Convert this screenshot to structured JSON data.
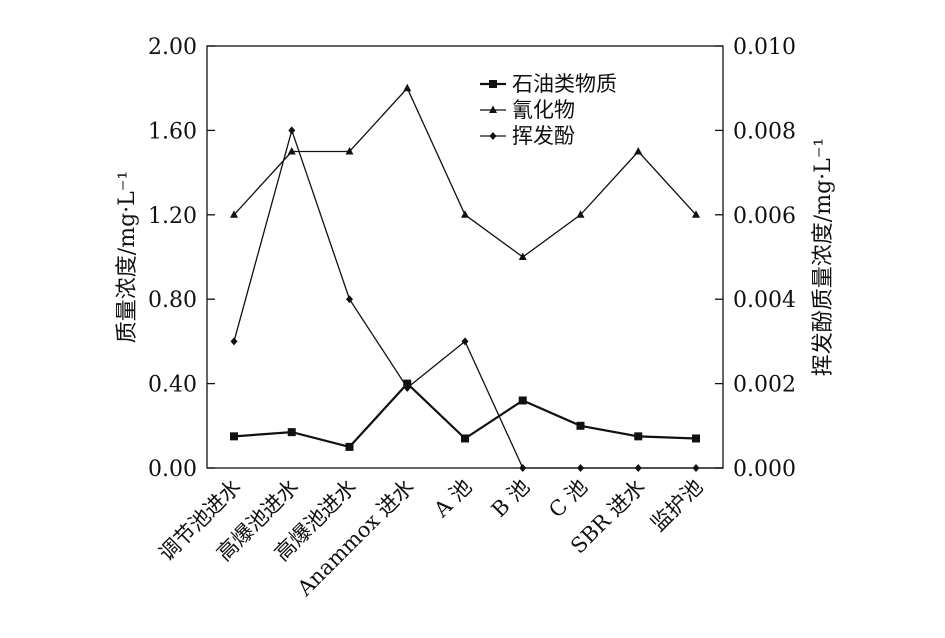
{
  "chart_data": {
    "type": "line",
    "categories": [
      "调节池进水",
      "高爆池进水",
      "高爆池进水",
      "Anammox 进水",
      "A 池",
      "B 池",
      "C 池",
      "SBR 进水",
      "监护池"
    ],
    "series": [
      {
        "name": "石油类物质",
        "marker": "square",
        "axis": "left",
        "values": [
          0.15,
          0.17,
          0.1,
          0.4,
          0.14,
          0.32,
          0.2,
          0.15,
          0.14
        ]
      },
      {
        "name": "氰化物",
        "marker": "triangle",
        "axis": "left",
        "values": [
          1.2,
          1.5,
          1.5,
          1.8,
          1.2,
          1.0,
          1.2,
          1.5,
          1.2
        ]
      },
      {
        "name": "挥发酚",
        "marker": "diamond",
        "axis": "right",
        "values": [
          0.003,
          0.008,
          0.004,
          0.0019,
          0.003,
          0.0,
          0.0,
          0.0,
          0.0
        ]
      }
    ],
    "y_left": {
      "label": "质量浓度/mg·L⁻¹",
      "ylim": [
        0,
        2.0
      ],
      "ticks": [
        "0.00",
        "0.40",
        "0.80",
        "1.20",
        "1.60",
        "2.00"
      ],
      "tick_values": [
        0,
        0.4,
        0.8,
        1.2,
        1.6,
        2.0
      ]
    },
    "y_right": {
      "label": "挥发酚质量浓度/mg·L⁻¹",
      "ylim": [
        0,
        0.01
      ],
      "ticks": [
        "0.000",
        "0.002",
        "0.004",
        "0.006",
        "0.008",
        "0.010"
      ],
      "tick_values": [
        0,
        0.002,
        0.004,
        0.006,
        0.008,
        0.01
      ]
    },
    "grid": false,
    "legend_position": "top-right",
    "colors": {
      "line": "#111111",
      "axis": "#111111"
    }
  }
}
